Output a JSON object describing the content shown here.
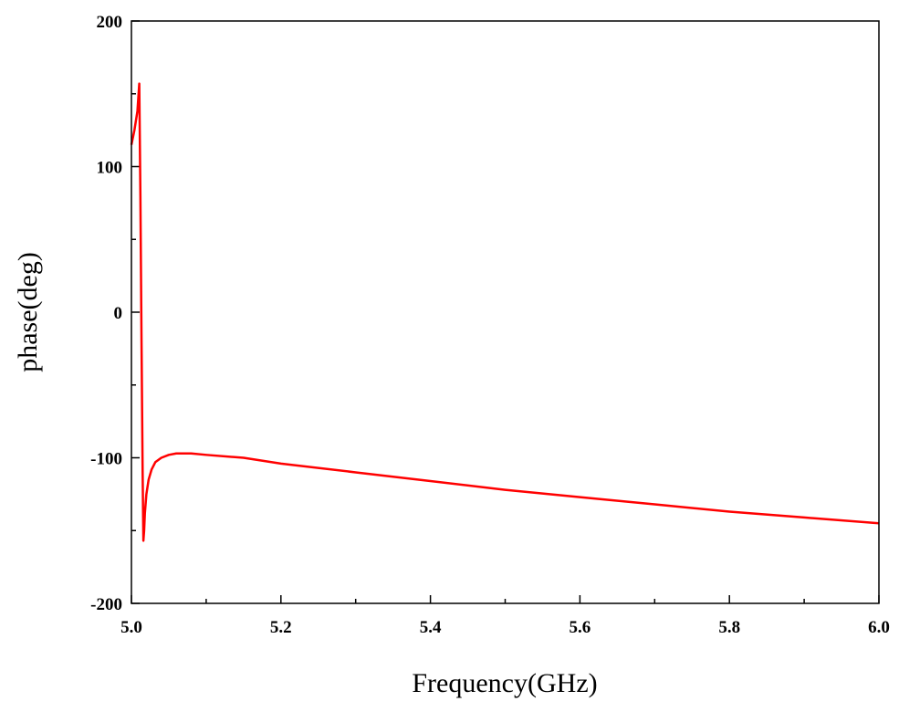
{
  "chart_data": {
    "type": "line",
    "title": "",
    "xlabel": "Frequency(GHz)",
    "ylabel": "phase(deg)",
    "xlim": [
      5.0,
      6.0
    ],
    "ylim": [
      -200,
      200
    ],
    "x_ticks": [
      "5.0",
      "5.2",
      "5.4",
      "5.6",
      "5.8",
      "6.0"
    ],
    "y_ticks": [
      "200",
      "100",
      "0",
      "-100",
      "-200"
    ],
    "grid": false,
    "legend": "none",
    "series": [
      {
        "color": "#ff0000",
        "x": [
          5.0,
          5.004,
          5.008,
          5.0105,
          5.012,
          5.0135,
          5.015,
          5.016,
          5.017,
          5.018,
          5.02,
          5.023,
          5.027,
          5.032,
          5.04,
          5.05,
          5.06,
          5.07,
          5.08,
          5.1,
          5.15,
          5.2,
          5.3,
          5.4,
          5.5,
          5.6,
          5.7,
          5.8,
          5.9,
          6.0
        ],
        "y": [
          115,
          125,
          138,
          157,
          80,
          -20,
          -110,
          -157,
          -150,
          -138,
          -125,
          -115,
          -108,
          -103,
          -100,
          -98,
          -97,
          -97,
          -97,
          -98,
          -100,
          -104,
          -110,
          -116,
          -122,
          -127,
          -132,
          -137,
          -141,
          -145
        ]
      }
    ]
  }
}
